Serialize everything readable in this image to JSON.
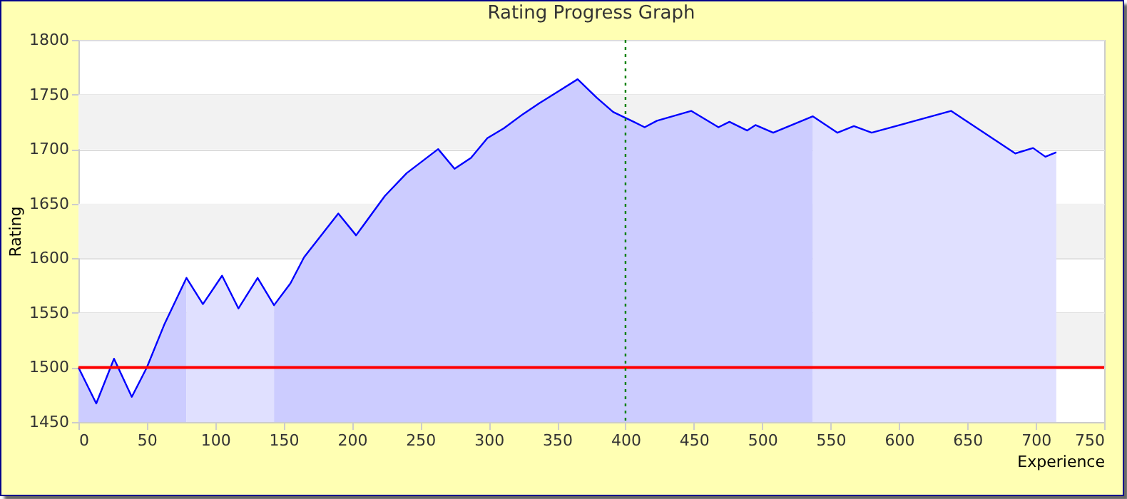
{
  "chart_data": {
    "type": "area",
    "title": "Rating Progress Graph",
    "xlabel": "Experience",
    "ylabel": "Rating",
    "xlim": [
      0,
      750
    ],
    "xticks": [
      0,
      50,
      100,
      150,
      200,
      250,
      300,
      350,
      400,
      450,
      500,
      550,
      600,
      650,
      700,
      750
    ],
    "ylim": [
      1450,
      1800
    ],
    "yticks": [
      1450,
      1500,
      1550,
      1600,
      1650,
      1700,
      1750,
      1800
    ],
    "grid": "y",
    "bands": [
      {
        "axis": "y",
        "from": 1500,
        "to": 1550,
        "color": "#f2f2f2"
      },
      {
        "axis": "y",
        "from": 1600,
        "to": 1650,
        "color": "#f2f2f2"
      },
      {
        "axis": "y",
        "from": 1700,
        "to": 1750,
        "color": "#f2f2f2"
      }
    ],
    "ref_lines": [
      {
        "axis": "y",
        "value": 1500,
        "color": "#ff0000",
        "line_style": "solid"
      },
      {
        "axis": "x",
        "value": 400,
        "color": "#008000",
        "line_style": "dotted"
      }
    ],
    "series": [
      {
        "color": "#ccccff",
        "x": [
          0,
          13,
          26,
          39,
          50,
          63,
          79
        ],
        "values": [
          1500,
          1467,
          1508,
          1473,
          1500,
          1540,
          1582
        ]
      },
      {
        "color": "#e0e0ff",
        "x": [
          79,
          91,
          105,
          117,
          131,
          143
        ],
        "values": [
          1582,
          1558,
          1584,
          1554,
          1582,
          1557
        ]
      },
      {
        "color": "#ccccff",
        "x": [
          143,
          155,
          165,
          190,
          203,
          224,
          240,
          263,
          275,
          287,
          299,
          311,
          325,
          337,
          351,
          365,
          379,
          391,
          406,
          414,
          423,
          448,
          468,
          476,
          489,
          495,
          508,
          537
        ],
        "values": [
          1557,
          1577,
          1601,
          1641,
          1621,
          1657,
          1678,
          1700,
          1682,
          1692,
          1710,
          1719,
          1732,
          1742,
          1753,
          1764,
          1747,
          1734,
          1725,
          1720,
          1726,
          1735,
          1720,
          1725,
          1717,
          1722,
          1715,
          1730
        ]
      },
      {
        "color": "#e0e0ff",
        "x": [
          537,
          555,
          567,
          580,
          638,
          685,
          698,
          707,
          715
        ],
        "values": [
          1730,
          1715,
          1721,
          1715,
          1735,
          1696,
          1701,
          1693,
          1697
        ]
      },
      {
        "type": "line",
        "color": "#0000ff",
        "x": [
          0,
          13,
          26,
          39,
          50,
          63,
          79,
          91,
          105,
          117,
          131,
          143,
          155,
          165,
          190,
          203,
          224,
          240,
          263,
          275,
          287,
          299,
          311,
          325,
          337,
          351,
          365,
          379,
          391,
          406,
          414,
          423,
          448,
          468,
          476,
          489,
          495,
          508,
          537,
          555,
          567,
          580,
          638,
          685,
          698,
          707,
          715
        ],
        "values": [
          1500,
          1467,
          1508,
          1473,
          1500,
          1540,
          1582,
          1558,
          1584,
          1554,
          1582,
          1557,
          1577,
          1601,
          1641,
          1621,
          1657,
          1678,
          1700,
          1682,
          1692,
          1710,
          1719,
          1732,
          1742,
          1753,
          1764,
          1747,
          1734,
          1725,
          1720,
          1726,
          1735,
          1720,
          1725,
          1717,
          1722,
          1715,
          1730,
          1715,
          1721,
          1715,
          1735,
          1696,
          1701,
          1693,
          1697
        ]
      }
    ]
  }
}
